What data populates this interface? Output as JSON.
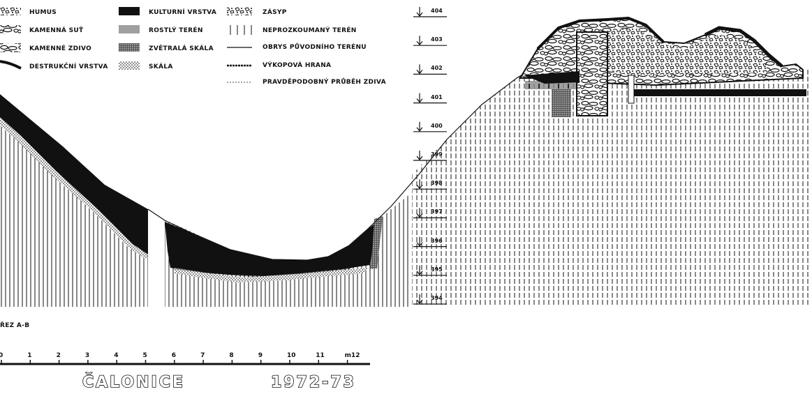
{
  "legend": {
    "col1": [
      "HUMUS",
      "KAMENNÁ SUŤ",
      "KAMENNÉ ZDIVO",
      "DESTRUKČNÍ VRSTVA"
    ],
    "col2": [
      "KULTURNÍ VRSTVA",
      "ROSTLÝ TERÉN",
      "ZVĚTRALÁ SKÁLA",
      "SKÁLA"
    ],
    "col3": [
      "ZÁSYP",
      "NEPROZKOUMANÝ TERÉN",
      "OBRYS PŮVODNÍHO TERÉNU",
      "VÝKOPOVÁ HRANA",
      "PRAVDĚPODOBNÝ PRŮBĚH ZDIVA"
    ]
  },
  "elevations": [
    "404",
    "403",
    "402",
    "401",
    "400",
    "399",
    "398",
    "397",
    "396",
    "395",
    "394"
  ],
  "section_label": "ŘEZ A-B",
  "scale": {
    "ticks": [
      "0",
      "1",
      "2",
      "3",
      "4",
      "5",
      "6",
      "7",
      "8",
      "9",
      "10",
      "11",
      "m12"
    ]
  },
  "site": "ČALONICE",
  "years": "1972-73"
}
